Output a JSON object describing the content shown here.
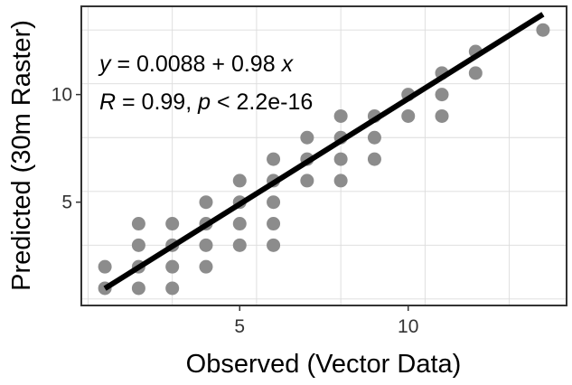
{
  "chart_data": {
    "type": "scatter",
    "xlabel": "Observed (Vector Data)",
    "ylabel": "Predicted (30m Raster)",
    "xlim": [
      0.3,
      14.7
    ],
    "ylim": [
      0.2,
      14.1
    ],
    "x_ticks": [
      5,
      10
    ],
    "y_ticks": [
      5,
      10
    ],
    "x_tick_labels": [
      "5",
      "10"
    ],
    "y_tick_labels": [
      "5",
      "10"
    ],
    "grid": true,
    "point_color": "#8c8c8c",
    "line_color": "#000000",
    "points": [
      [
        1,
        1
      ],
      [
        1,
        2
      ],
      [
        2,
        1
      ],
      [
        2,
        2
      ],
      [
        2,
        3
      ],
      [
        2,
        4
      ],
      [
        3,
        1
      ],
      [
        3,
        2
      ],
      [
        3,
        3
      ],
      [
        3,
        4
      ],
      [
        4,
        2
      ],
      [
        4,
        3
      ],
      [
        4,
        4
      ],
      [
        4,
        5
      ],
      [
        5,
        3
      ],
      [
        5,
        4
      ],
      [
        5,
        5
      ],
      [
        5,
        6
      ],
      [
        6,
        3
      ],
      [
        6,
        4
      ],
      [
        6,
        5
      ],
      [
        6,
        6
      ],
      [
        6,
        7
      ],
      [
        7,
        6
      ],
      [
        7,
        7
      ],
      [
        7,
        8
      ],
      [
        8,
        6
      ],
      [
        8,
        7
      ],
      [
        8,
        8
      ],
      [
        8,
        9
      ],
      [
        9,
        7
      ],
      [
        9,
        8
      ],
      [
        9,
        9
      ],
      [
        10,
        9
      ],
      [
        10,
        10
      ],
      [
        11,
        9
      ],
      [
        11,
        10
      ],
      [
        11,
        11
      ],
      [
        12,
        11
      ],
      [
        12,
        12
      ],
      [
        14,
        13
      ]
    ],
    "regression": {
      "intercept": 0.0088,
      "slope": 0.98,
      "x_range": [
        1,
        14
      ]
    },
    "annotation": {
      "eq_y": "y",
      "eq_rest": " = 0.0088 + 0.98 ",
      "eq_x": "x",
      "stat_R": "R",
      "stat_mid": " = 0.99, ",
      "stat_p": "p",
      "stat_rest": " < 2.2e-16"
    }
  }
}
